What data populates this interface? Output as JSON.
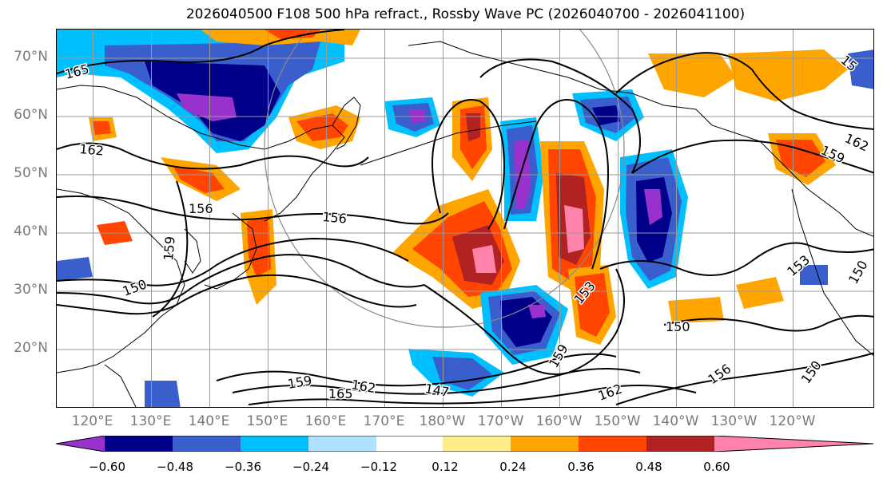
{
  "title": "2026040500 F108 500 hPa refract., Rossby Wave PC (2026040700 - 2026041100)",
  "map": {
    "lat_labels": [
      {
        "text": "70°N",
        "lat": 70
      },
      {
        "text": "60°N",
        "lat": 60
      },
      {
        "text": "50°N",
        "lat": 50
      },
      {
        "text": "40°N",
        "lat": 40
      },
      {
        "text": "30°N",
        "lat": 30
      },
      {
        "text": "20°N",
        "lat": 20
      }
    ],
    "lon_labels": [
      {
        "text": "120°E",
        "lon": 120
      },
      {
        "text": "130°E",
        "lon": 130
      },
      {
        "text": "140°E",
        "lon": 140
      },
      {
        "text": "150°E",
        "lon": 150
      },
      {
        "text": "160°E",
        "lon": 160
      },
      {
        "text": "170°E",
        "lon": 170
      },
      {
        "text": "180°W",
        "lon": 180
      },
      {
        "text": "170°W",
        "lon": 190
      },
      {
        "text": "160°W",
        "lon": 200
      },
      {
        "text": "150°W",
        "lon": 210
      },
      {
        "text": "140°W",
        "lon": 220
      },
      {
        "text": "130°W",
        "lon": 230
      },
      {
        "text": "120°W",
        "lon": 240
      }
    ],
    "contour_labels": [
      {
        "text": "165"
      },
      {
        "text": "162"
      },
      {
        "text": "156"
      },
      {
        "text": "159"
      },
      {
        "text": "150"
      },
      {
        "text": "156"
      },
      {
        "text": "153"
      },
      {
        "text": "150"
      },
      {
        "text": "159"
      },
      {
        "text": "162"
      },
      {
        "text": "147"
      },
      {
        "text": "165"
      },
      {
        "text": "162"
      },
      {
        "text": "159"
      },
      {
        "text": "156"
      },
      {
        "text": "150"
      },
      {
        "text": "162"
      },
      {
        "text": "159"
      },
      {
        "text": "153"
      },
      {
        "text": "150"
      },
      {
        "text": "15"
      }
    ]
  },
  "colorbar": {
    "colors": [
      "#9932CC",
      "#00008B",
      "#3A5FCD",
      "#00BFFF",
      "#B0E2FF",
      "#FFFFFF",
      "#FFEC8B",
      "#FFA500",
      "#FF4500",
      "#B22222",
      "#FF82AB"
    ],
    "tick_labels": [
      "−0.60",
      "−0.48",
      "−0.36",
      "−0.24",
      "−0.12",
      "0.12",
      "0.24",
      "0.36",
      "0.48",
      "0.60"
    ]
  }
}
